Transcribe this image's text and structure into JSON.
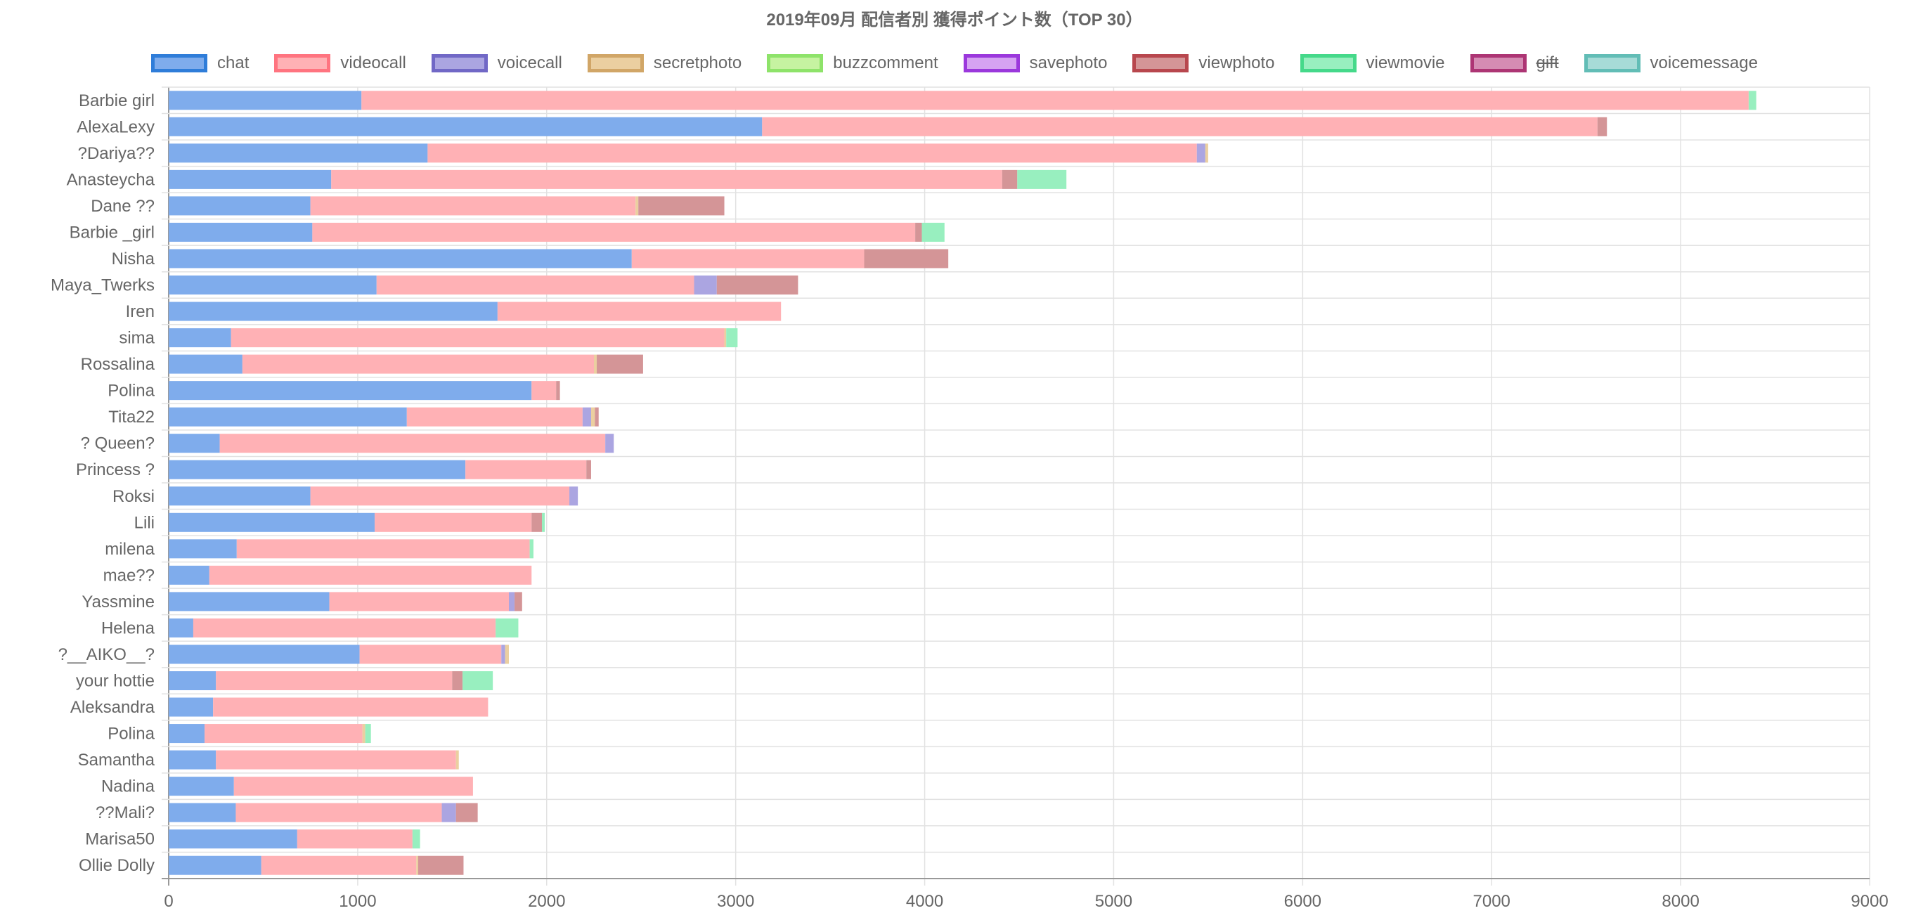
{
  "chart_data": {
    "type": "bar",
    "orientation": "horizontal",
    "stacked": true,
    "title": "2019年09月 配信者別 獲得ポイント数（TOP 30）",
    "xlim": [
      0,
      9000
    ],
    "xticks": [
      0,
      1000,
      2000,
      3000,
      4000,
      5000,
      6000,
      7000,
      8000,
      9000
    ],
    "grid": true,
    "legend_position": "top",
    "categories": [
      "Barbie girl",
      "AlexaLexy",
      "?Dariya??",
      "Anasteycha",
      "Dane ??",
      "Barbie _girl",
      "Nisha",
      "Maya_Twerks",
      "Iren",
      "sima",
      "Rossalina",
      "Polina",
      "Tita22",
      "? Queen?",
      "Princess ?",
      "Roksi",
      "Lili",
      "milena",
      "mae??",
      "Yassmine",
      "Helena",
      "?__AIKO__?",
      "your hottie",
      "Aleksandra",
      "Polina",
      "Samantha",
      "Nadina",
      "??Mali?",
      "Marisa50",
      "Ollie Dolly"
    ],
    "series": [
      {
        "name": "chat",
        "fill": "#7facec",
        "border": "#2f7dd9",
        "hidden": false,
        "values": [
          1020,
          3140,
          1370,
          860,
          750,
          760,
          2450,
          1100,
          1740,
          330,
          390,
          1920,
          1260,
          270,
          1570,
          750,
          1090,
          360,
          215,
          850,
          130,
          1010,
          250,
          235,
          190,
          250,
          345,
          355,
          680,
          490
        ]
      },
      {
        "name": "videocall",
        "fill": "#ffb1b5",
        "border": "#ff7480",
        "hidden": false,
        "values": [
          7340,
          4420,
          4070,
          3550,
          1720,
          3190,
          1230,
          1680,
          1500,
          2610,
          1860,
          130,
          930,
          2040,
          640,
          1370,
          830,
          1550,
          1705,
          950,
          1600,
          750,
          1250,
          1455,
          835,
          1270,
          1265,
          1090,
          610,
          820
        ]
      },
      {
        "name": "voicecall",
        "fill": "#aba5e1",
        "border": "#7168c6",
        "hidden": false,
        "values": [
          0,
          0,
          45,
          0,
          0,
          0,
          0,
          120,
          0,
          0,
          0,
          0,
          45,
          45,
          0,
          45,
          0,
          0,
          0,
          30,
          0,
          20,
          0,
          0,
          0,
          0,
          0,
          75,
          0,
          0
        ]
      },
      {
        "name": "secretphoto",
        "fill": "#ebcfa0",
        "border": "#d1a667",
        "hidden": false,
        "values": [
          0,
          0,
          15,
          0,
          15,
          0,
          0,
          0,
          0,
          10,
          15,
          0,
          20,
          0,
          0,
          0,
          0,
          0,
          0,
          0,
          0,
          20,
          0,
          0,
          15,
          15,
          0,
          0,
          0,
          10
        ]
      },
      {
        "name": "buzzcomment",
        "fill": "#c6f3a1",
        "border": "#8ee36a",
        "hidden": false,
        "values": [
          0,
          0,
          0,
          0,
          0,
          0,
          0,
          0,
          0,
          0,
          0,
          0,
          0,
          0,
          0,
          0,
          0,
          0,
          0,
          0,
          0,
          0,
          0,
          0,
          0,
          0,
          0,
          0,
          0,
          0
        ]
      },
      {
        "name": "savephoto",
        "fill": "#d6a3f2",
        "border": "#9b38dc",
        "hidden": false,
        "values": [
          0,
          0,
          0,
          0,
          0,
          0,
          0,
          0,
          0,
          0,
          0,
          0,
          0,
          0,
          0,
          0,
          0,
          0,
          0,
          0,
          0,
          0,
          0,
          0,
          0,
          0,
          0,
          0,
          0,
          0
        ]
      },
      {
        "name": "viewphoto",
        "fill": "#d49597",
        "border": "#b8474e",
        "hidden": false,
        "values": [
          0,
          50,
          0,
          80,
          455,
          35,
          445,
          430,
          0,
          0,
          245,
          20,
          20,
          0,
          25,
          0,
          55,
          0,
          0,
          40,
          0,
          0,
          55,
          0,
          0,
          0,
          0,
          115,
          0,
          240
        ]
      },
      {
        "name": "viewmovie",
        "fill": "#98efbf",
        "border": "#45d98a",
        "hidden": false,
        "values": [
          40,
          0,
          0,
          260,
          0,
          120,
          0,
          0,
          0,
          60,
          0,
          0,
          0,
          0,
          0,
          0,
          15,
          20,
          0,
          0,
          120,
          0,
          160,
          0,
          30,
          0,
          0,
          0,
          40,
          0
        ]
      },
      {
        "name": "gift",
        "fill": "#d58cb3",
        "border": "#ad3574",
        "hidden": true,
        "values": [
          0,
          0,
          0,
          0,
          0,
          0,
          0,
          0,
          0,
          0,
          0,
          0,
          0,
          0,
          0,
          0,
          0,
          0,
          0,
          0,
          0,
          0,
          0,
          0,
          0,
          0,
          0,
          0,
          0,
          0
        ]
      },
      {
        "name": "voicemessage",
        "fill": "#a7dbd7",
        "border": "#62bdb6",
        "hidden": false,
        "values": [
          0,
          0,
          0,
          0,
          0,
          0,
          0,
          0,
          0,
          0,
          0,
          0,
          0,
          0,
          0,
          0,
          0,
          0,
          0,
          0,
          0,
          0,
          0,
          0,
          0,
          0,
          0,
          0,
          0,
          0
        ]
      }
    ]
  }
}
